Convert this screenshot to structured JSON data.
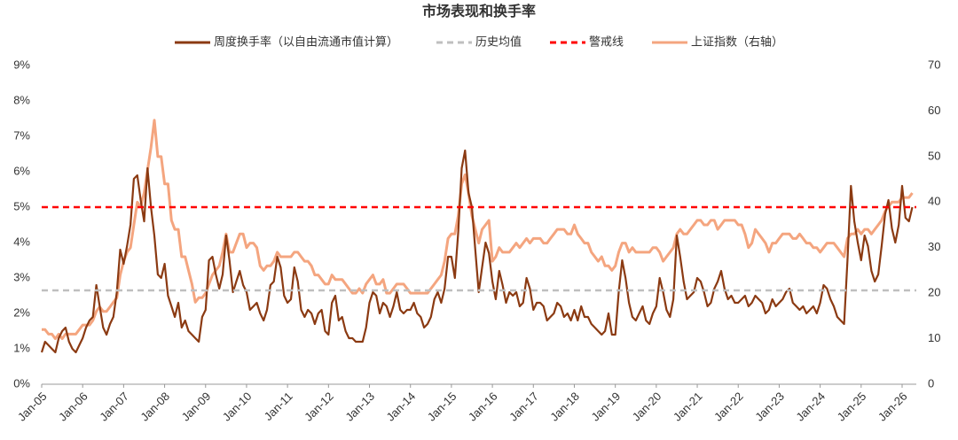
{
  "chart_data": {
    "type": "line",
    "title": "市场表现和换手率",
    "categories": [
      "Jan-05",
      null,
      null,
      null,
      null,
      null,
      null,
      null,
      null,
      null,
      null,
      null,
      "Jan-06",
      null,
      null,
      null,
      null,
      null,
      null,
      null,
      null,
      null,
      null,
      null,
      "Jan-07",
      null,
      null,
      null,
      null,
      null,
      null,
      null,
      null,
      null,
      null,
      null,
      "Jan-08",
      null,
      null,
      null,
      null,
      null,
      null,
      null,
      null,
      null,
      null,
      null,
      "Jan-09",
      null,
      null,
      null,
      null,
      null,
      null,
      null,
      null,
      null,
      null,
      null,
      "Jan-10",
      null,
      null,
      null,
      null,
      null,
      null,
      null,
      null,
      null,
      null,
      null,
      "Jan-11",
      null,
      null,
      null,
      null,
      null,
      null,
      null,
      null,
      null,
      null,
      null,
      "Jan-12",
      null,
      null,
      null,
      null,
      null,
      null,
      null,
      null,
      null,
      null,
      null,
      "Jan-13",
      null,
      null,
      null,
      null,
      null,
      null,
      null,
      null,
      null,
      null,
      null,
      "Jan-14",
      null,
      null,
      null,
      null,
      null,
      null,
      null,
      null,
      null,
      null,
      null,
      "Jan-15",
      null,
      null,
      null,
      null,
      null,
      null,
      null,
      null,
      null,
      null,
      null,
      "Jan-16",
      null,
      null,
      null,
      null,
      null,
      null,
      null,
      null,
      null,
      null,
      null,
      "Jan-17",
      null,
      null,
      null,
      null,
      null,
      null,
      null,
      null,
      null,
      null,
      null,
      "Jan-18",
      null,
      null,
      null,
      null,
      null,
      null,
      null,
      null,
      null,
      null,
      null,
      "Jan-19",
      null,
      null,
      null,
      null,
      null,
      null,
      null,
      null,
      null,
      null,
      null,
      "Jan-20",
      null,
      null,
      null,
      null,
      null,
      null,
      null,
      null,
      null,
      null,
      null,
      "Jan-21",
      null,
      null,
      null,
      null,
      null,
      null,
      null,
      null,
      null,
      null,
      null,
      "Jan-22",
      null,
      null,
      null,
      null,
      null,
      null,
      null,
      null,
      null,
      null,
      null,
      "Jan-23",
      null,
      null,
      null,
      null,
      null,
      null,
      null,
      null,
      null,
      null,
      null,
      "Jan-24",
      null,
      null,
      null,
      null,
      null,
      null,
      null,
      null,
      null,
      null,
      null,
      "Jan-25",
      null,
      null,
      null,
      null,
      null,
      null,
      null,
      null,
      null,
      null,
      null,
      "Jan-26",
      null,
      null,
      null
    ],
    "series": [
      {
        "name": "周度换手率（以自由流通市值计算）",
        "color": "#8B3A12",
        "values": [
          0.9,
          1.2,
          1.1,
          1.0,
          0.9,
          1.3,
          1.5,
          1.6,
          1.2,
          1.0,
          0.9,
          1.1,
          1.3,
          1.6,
          1.8,
          1.9,
          2.8,
          2.2,
          1.6,
          1.4,
          1.7,
          1.9,
          2.6,
          3.8,
          3.4,
          3.9,
          4.5,
          5.8,
          5.9,
          5.2,
          4.6,
          6.1,
          5.0,
          4.2,
          3.1,
          3.0,
          3.4,
          2.5,
          2.2,
          1.9,
          2.3,
          1.6,
          1.8,
          1.5,
          1.4,
          1.3,
          1.2,
          1.9,
          2.1,
          3.5,
          3.6,
          3.1,
          2.7,
          3.1,
          4.2,
          3.5,
          2.6,
          2.9,
          3.2,
          2.8,
          2.6,
          2.1,
          2.2,
          2.3,
          2.0,
          1.8,
          2.1,
          2.8,
          2.9,
          3.6,
          3.3,
          2.5,
          2.3,
          2.4,
          3.3,
          2.9,
          2.1,
          1.9,
          2.1,
          2.0,
          1.7,
          2.0,
          2.1,
          1.5,
          1.4,
          2.3,
          2.5,
          1.8,
          1.9,
          1.5,
          1.3,
          1.3,
          1.2,
          1.2,
          1.2,
          1.6,
          2.3,
          2.6,
          2.5,
          2.0,
          2.3,
          2.2,
          1.9,
          2.2,
          2.6,
          2.1,
          2.0,
          2.1,
          2.1,
          2.3,
          2.0,
          1.9,
          1.6,
          1.7,
          1.9,
          2.4,
          2.6,
          2.3,
          2.7,
          3.6,
          3.6,
          3.0,
          4.3,
          6.1,
          6.6,
          5.4,
          5.0,
          3.8,
          2.6,
          3.3,
          4.0,
          3.7,
          2.9,
          2.4,
          3.2,
          2.8,
          2.3,
          2.6,
          2.5,
          2.6,
          2.2,
          2.3,
          3.0,
          2.7,
          2.1,
          2.3,
          2.3,
          2.2,
          1.8,
          1.9,
          2.0,
          2.3,
          2.2,
          1.9,
          2.0,
          1.8,
          2.1,
          1.8,
          2.2,
          1.9,
          1.9,
          1.7,
          1.6,
          1.5,
          1.4,
          1.5,
          2.0,
          1.4,
          1.4,
          2.6,
          3.5,
          3.0,
          2.3,
          1.9,
          1.8,
          2.0,
          2.2,
          1.8,
          1.7,
          2.0,
          2.2,
          3.0,
          2.6,
          2.1,
          1.9,
          2.4,
          4.2,
          3.6,
          2.9,
          2.4,
          2.5,
          2.6,
          3.0,
          2.9,
          2.6,
          2.2,
          2.3,
          2.7,
          2.9,
          3.2,
          2.7,
          2.4,
          2.5,
          2.3,
          2.3,
          2.4,
          2.5,
          2.2,
          2.3,
          2.5,
          2.4,
          2.3,
          2.0,
          2.1,
          2.4,
          2.2,
          2.3,
          2.4,
          2.6,
          2.7,
          2.3,
          2.2,
          2.1,
          2.2,
          2.0,
          2.1,
          2.2,
          2.0,
          2.3,
          2.8,
          2.7,
          2.4,
          2.2,
          1.9,
          1.8,
          1.7,
          3.5,
          5.6,
          4.6,
          4.0,
          3.5,
          4.2,
          3.9,
          3.2,
          2.9,
          3.1,
          3.9,
          4.8,
          5.2,
          4.4,
          4.0,
          4.5,
          5.6,
          4.7,
          4.6,
          5.0
        ]
      },
      {
        "name": "历史均值",
        "color": "#BFBFBF",
        "value": 2.65,
        "dashed": true
      },
      {
        "name": "警戒线",
        "color": "#FF0000",
        "value": 5,
        "dashed": true
      },
      {
        "name": "上证指数（右轴）",
        "color": "#F4A57F",
        "axis": "y2",
        "values": [
          12,
          12,
          11,
          11,
          10,
          11,
          10,
          11,
          11,
          11,
          11,
          12,
          13,
          13,
          13,
          14,
          16,
          17,
          16,
          16,
          17,
          18,
          19,
          24,
          27,
          29,
          30,
          35,
          40,
          39,
          42,
          47,
          52,
          58,
          50,
          50,
          44,
          44,
          36,
          34,
          34,
          28,
          28,
          25,
          22,
          18,
          19,
          19,
          20,
          22,
          24,
          25,
          26,
          29,
          33,
          29,
          29,
          31,
          33,
          33,
          30,
          31,
          31,
          30,
          26,
          25,
          26,
          26,
          27,
          29,
          28,
          28,
          28,
          28,
          29,
          29,
          28,
          27,
          27,
          26,
          24,
          24,
          23,
          22,
          22,
          24,
          23,
          23,
          23,
          22,
          21,
          20,
          20,
          21,
          20,
          22,
          23,
          24,
          22,
          22,
          23,
          20,
          20,
          21,
          22,
          22,
          22,
          21,
          20,
          20,
          20,
          20,
          20,
          20,
          21,
          22,
          23,
          24,
          27,
          32,
          33,
          33,
          37,
          44,
          46,
          42,
          37,
          34,
          31,
          34,
          35,
          36,
          27,
          28,
          30,
          29,
          29,
          29,
          30,
          31,
          30,
          31,
          32,
          31,
          32,
          32,
          32,
          31,
          31,
          32,
          33,
          34,
          34,
          34,
          33,
          33,
          35,
          33,
          32,
          31,
          31,
          29,
          28,
          27,
          28,
          26,
          26,
          25,
          26,
          29,
          31,
          31,
          29,
          30,
          29,
          29,
          29,
          29,
          29,
          30,
          30,
          29,
          27,
          28,
          29,
          30,
          33,
          34,
          33,
          33,
          34,
          35,
          36,
          36,
          35,
          35,
          36,
          36,
          34,
          35,
          36,
          36,
          36,
          36,
          35,
          35,
          33,
          30,
          31,
          34,
          33,
          32,
          31,
          29,
          31,
          31,
          32,
          33,
          33,
          33,
          32,
          32,
          33,
          32,
          31,
          31,
          30,
          30,
          29,
          30,
          31,
          31,
          31,
          30,
          29,
          28,
          32,
          33,
          33,
          34,
          33,
          34,
          34,
          33,
          34,
          35,
          36,
          38,
          39,
          40,
          40,
          40,
          41,
          41,
          41,
          42
        ]
      }
    ],
    "ylim": [
      0,
      9
    ],
    "yticks": [
      {
        "value": 0,
        "label": "0%"
      },
      {
        "value": 1,
        "label": "1%"
      },
      {
        "value": 2,
        "label": "2%"
      },
      {
        "value": 3,
        "label": "3%"
      },
      {
        "value": 4,
        "label": "4%"
      },
      {
        "value": 5,
        "label": "5%"
      },
      {
        "value": 6,
        "label": "6%"
      },
      {
        "value": 7,
        "label": "7%"
      },
      {
        "value": 8,
        "label": "8%"
      },
      {
        "value": 9,
        "label": "9%"
      }
    ],
    "y2lim": [
      0,
      70
    ],
    "y2ticks": [
      0,
      10,
      20,
      30,
      40,
      50,
      60,
      70
    ],
    "grid": false
  }
}
